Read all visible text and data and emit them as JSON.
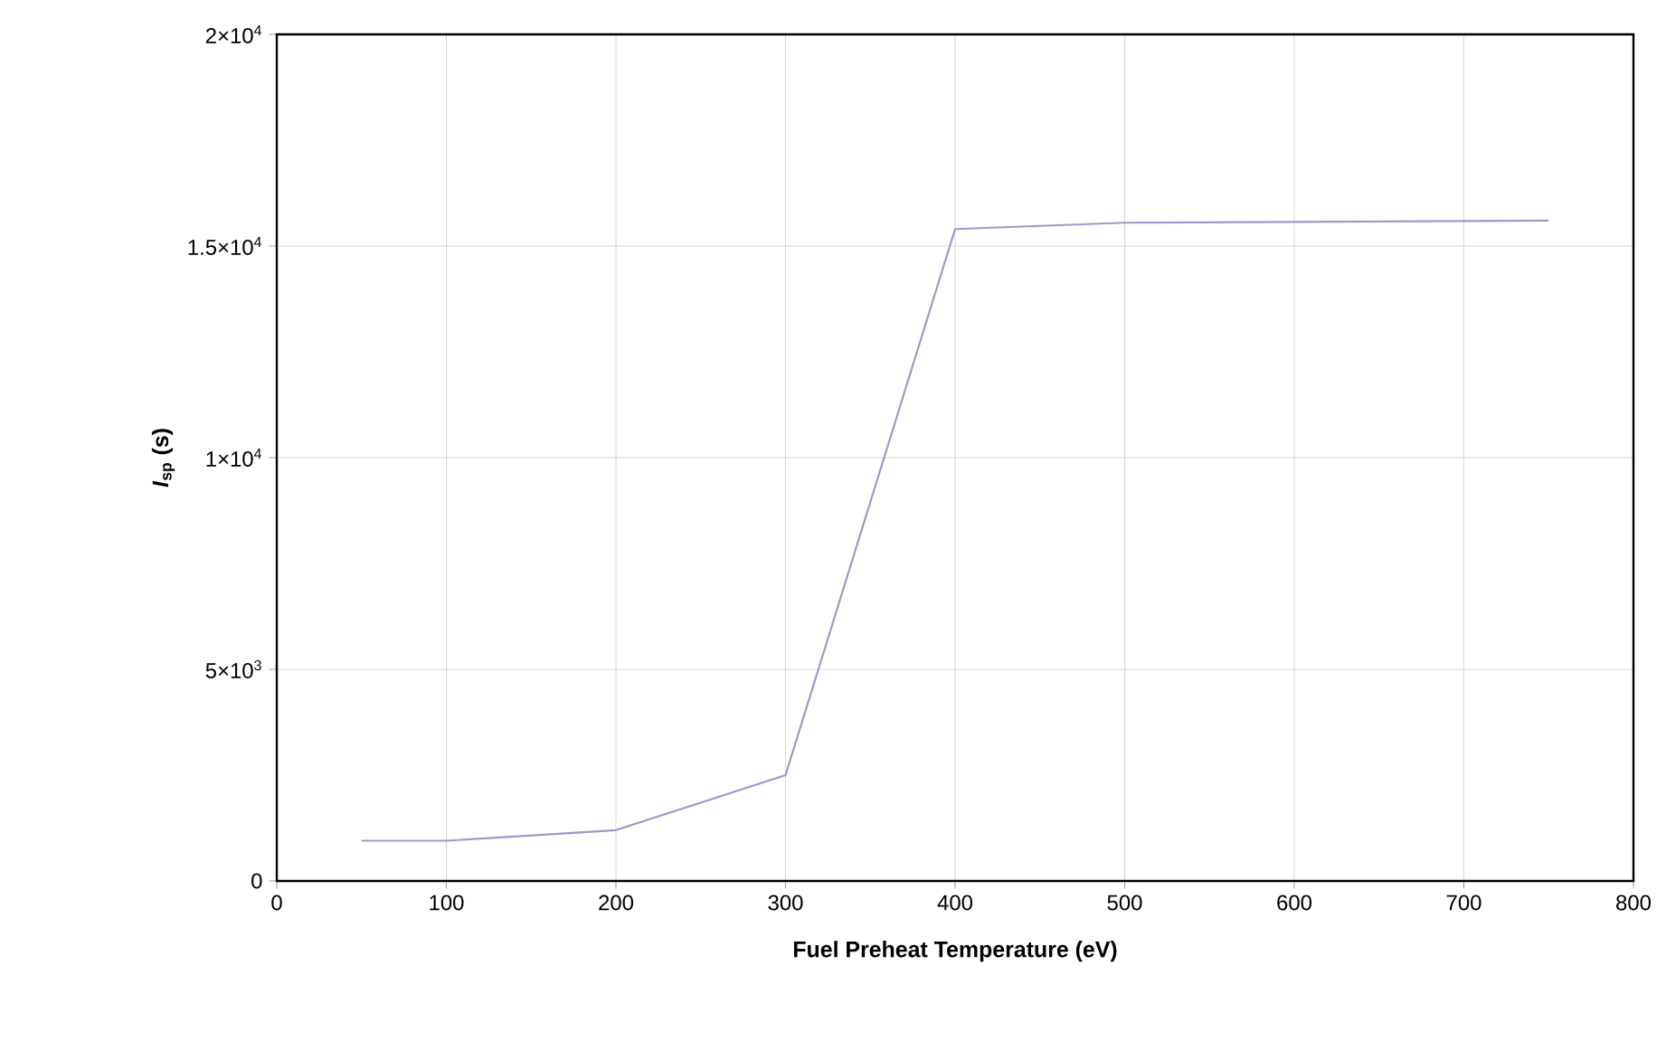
{
  "chart_data": {
    "type": "line",
    "xlabel": "Fuel Preheat Temperature (eV)",
    "ylabel": "*I*$_{sp}$ (s)",
    "x": [
      50,
      100,
      200,
      300,
      400,
      500,
      750
    ],
    "series": [
      {
        "color": "#9a9acc",
        "values": [
          950,
          950,
          1200,
          2500,
          15400,
          15550,
          15600
        ]
      }
    ],
    "xlim": [
      0,
      800
    ],
    "xticks": [
      0,
      100,
      200,
      300,
      400,
      500,
      600,
      700,
      800
    ],
    "ylim": [
      0,
      20000
    ],
    "yticks": [
      0,
      {
        "value": 5000,
        "label": "5×10$^{3}$"
      },
      {
        "value": 10000,
        "label": "1×10$^{4}$"
      },
      {
        "value": 15000,
        "label": "1.5×10$^{4}$"
      },
      {
        "value": 20000,
        "label": "2×10$^{4}$"
      }
    ],
    "grid": true,
    "marker": "none",
    "line_style": "solid"
  }
}
